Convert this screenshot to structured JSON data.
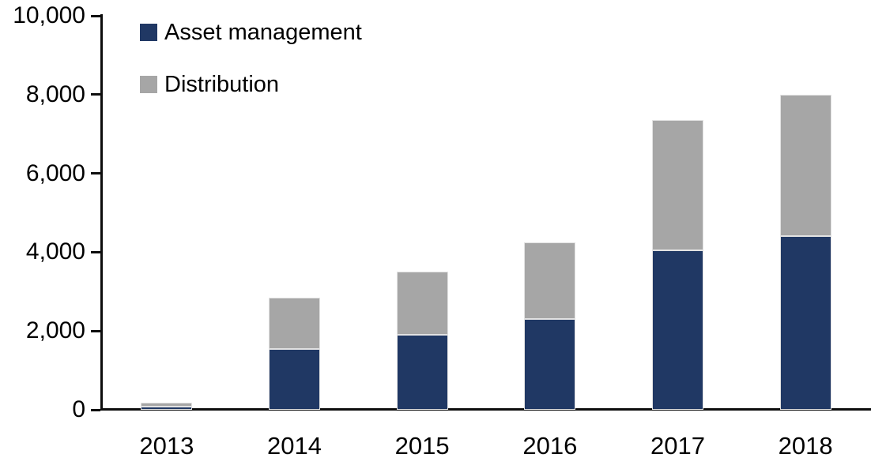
{
  "chart_data": {
    "type": "bar",
    "stacked": true,
    "title": "",
    "xlabel": "",
    "ylabel": "",
    "categories": [
      "2013",
      "2014",
      "2015",
      "2016",
      "2017",
      "2018"
    ],
    "series": [
      {
        "name": "Asset management",
        "color": "#203864",
        "values": [
          75,
          1550,
          1900,
          2300,
          4050,
          4400
        ]
      },
      {
        "name": "Distribution",
        "color": "#A6A6A6",
        "values": [
          100,
          1300,
          1600,
          1950,
          3300,
          3600
        ]
      }
    ],
    "totals": [
      175,
      2850,
      3500,
      4250,
      7350,
      8000
    ],
    "ylim": [
      0,
      10000
    ],
    "ytick_interval": 2000,
    "ytick_labels": [
      "0",
      "2,000",
      "4,000",
      "6,000",
      "8,000",
      "10,000"
    ],
    "grid": false,
    "legend_position": "top-left"
  },
  "legend": {
    "items": [
      {
        "label": "Asset management",
        "color": "#203864"
      },
      {
        "label": "Distribution",
        "color": "#A6A6A6"
      }
    ]
  },
  "axis": {
    "line_color": "#0d0d0d"
  }
}
